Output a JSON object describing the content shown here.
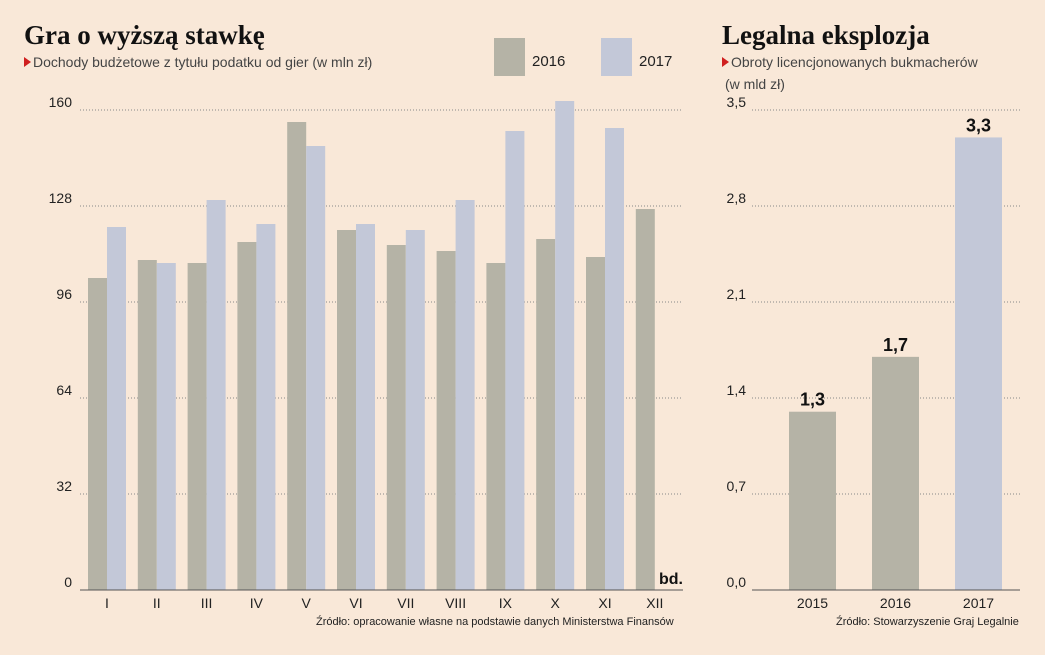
{
  "colors": {
    "background": "#f9e8d8",
    "series_2016": "#b5b3a6",
    "series_2017": "#c3c8d8",
    "marker": "#d01f1f"
  },
  "left": {
    "title": "Gra o wyższą stawkę",
    "subtitle": "Dochody budżetowe z tytułu podatku od gier (w mln zł)",
    "legend": [
      "2016",
      "2017"
    ],
    "source": "Źródło: opracowanie własne na podstawie danych Ministerstwa Finansów",
    "missing_note": "bd."
  },
  "right": {
    "title": "Legalna eksplozja",
    "subtitle_line1": "Obroty licencjonowanych bukmacherów",
    "subtitle_line2": "(w mld zł)",
    "source": "Źródło: Stowarzyszenie Graj Legalnie"
  },
  "chart_data": [
    {
      "type": "bar",
      "title": "Gra o wyższą stawkę",
      "subtitle": "Dochody budżetowe z tytułu podatku od gier (w mln zł)",
      "categories": [
        "I",
        "II",
        "III",
        "IV",
        "V",
        "VI",
        "VII",
        "VIII",
        "IX",
        "X",
        "XI",
        "XII"
      ],
      "series": [
        {
          "name": "2016",
          "values": [
            104,
            110,
            109,
            116,
            156,
            120,
            115,
            113,
            109,
            117,
            111,
            127
          ]
        },
        {
          "name": "2017",
          "values": [
            121,
            109,
            130,
            122,
            148,
            122,
            120,
            130,
            153,
            163,
            154,
            null
          ]
        }
      ],
      "yticks": [
        "0",
        "32",
        "64",
        "96",
        "128",
        "160"
      ],
      "ylim": [
        0,
        160
      ],
      "grid": true,
      "legend_position": "top-right"
    },
    {
      "type": "bar",
      "title": "Legalna eksplozja",
      "subtitle": "Obroty licencjonowanych bukmacherów (w mld zł)",
      "categories": [
        "2015",
        "2016",
        "2017"
      ],
      "values": [
        1.3,
        1.7,
        3.3
      ],
      "data_labels": [
        "1,3",
        "1,7",
        "3,3"
      ],
      "yticks": [
        "0,0",
        "0,7",
        "1,4",
        "2,1",
        "2,8",
        "3,5"
      ],
      "ylim": [
        0,
        3.5
      ],
      "grid": true
    }
  ]
}
